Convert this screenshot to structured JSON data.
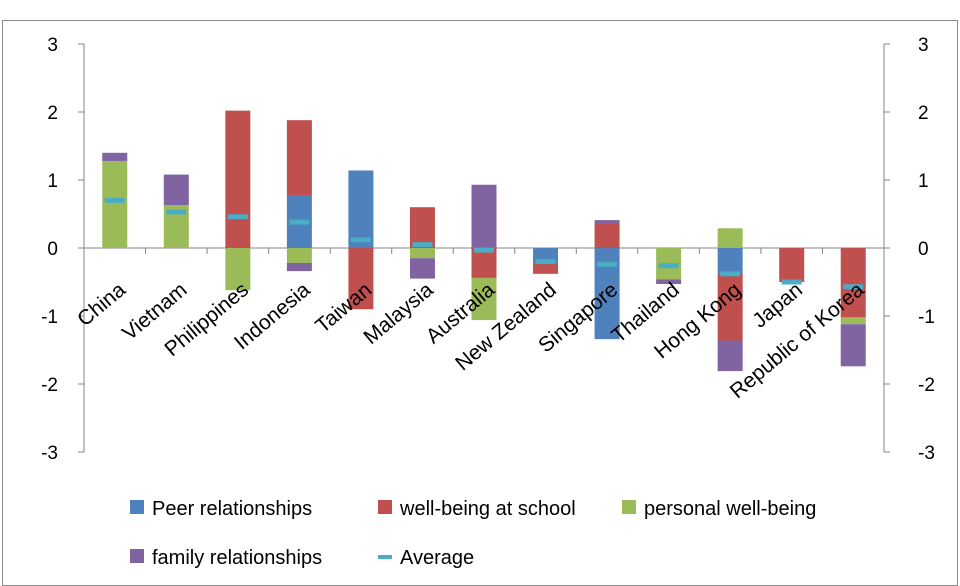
{
  "chart_data": {
    "type": "bar",
    "stacked": true,
    "diverging": true,
    "categories": [
      "China",
      "Vietnam",
      "Philippines",
      "Indonesia",
      "Taiwan",
      "Malaysia",
      "Australia",
      "New Zealand",
      "Singapore",
      "Thailand",
      "Hong Kong",
      "Japan",
      "Republic of Korea"
    ],
    "series": [
      {
        "name": "Peer relationships",
        "color": "#4f81bd",
        "values": [
          0,
          0,
          0,
          0.78,
          1.14,
          0,
          0,
          -0.22,
          -1.34,
          0,
          -0.38,
          0,
          0
        ]
      },
      {
        "name": "well-being at school",
        "color": "#c0504d",
        "values": [
          0,
          0,
          2.02,
          1.1,
          -0.9,
          0.6,
          -0.44,
          -0.16,
          0.36,
          0,
          -0.98,
          -0.5,
          -1.02
        ]
      },
      {
        "name": "personal well-being",
        "color": "#9bbb59",
        "values": [
          1.28,
          0.63,
          -0.62,
          -0.22,
          0,
          -0.15,
          -0.62,
          0,
          0,
          -0.46,
          0.29,
          0,
          -0.1
        ]
      },
      {
        "name": "family relationships",
        "color": "#8064a2",
        "values": [
          0.12,
          0.45,
          0,
          -0.12,
          0,
          -0.3,
          0.93,
          0,
          0.05,
          -0.07,
          -0.45,
          0,
          -0.62
        ]
      }
    ],
    "average": {
      "name": "Average",
      "color": "#4bacc6",
      "values": [
        0.7,
        0.53,
        0.46,
        0.38,
        0.12,
        0.05,
        -0.03,
        -0.2,
        -0.24,
        -0.26,
        -0.38,
        -0.5,
        -0.57
      ]
    },
    "ylim": [
      -3,
      3
    ],
    "yticks": [
      3,
      2,
      1,
      0,
      -1,
      -2,
      -3
    ],
    "ytick_labels": [
      "3",
      "2",
      "1",
      "0",
      "-1",
      "-2",
      "-3"
    ],
    "secondary_axis": true,
    "legend_position": "bottom",
    "grid": false
  }
}
